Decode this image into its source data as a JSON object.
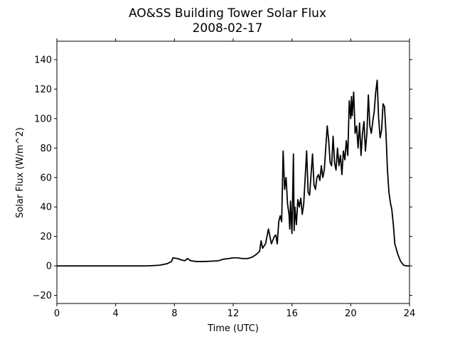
{
  "chart_data": {
    "type": "line",
    "title": "AO&SS Building Tower Solar Flux",
    "subtitle": "2008-02-17",
    "x_label": "Time (UTC)",
    "y_label": "Solar Flux (W/m^2)",
    "xlim": [
      0,
      24
    ],
    "xticks": [
      0,
      4,
      8,
      12,
      16,
      20,
      24
    ],
    "ylim": [
      -25.5,
      152.5
    ],
    "yticks": [
      {
        "value": -20,
        "label": "−20"
      },
      0,
      20,
      40,
      60,
      80,
      100,
      120,
      140
    ],
    "grid": false,
    "x": [
      0,
      2,
      4,
      6,
      6.5,
      7,
      7.5,
      7.8,
      7.9,
      8.2,
      8.5,
      8.7,
      8.9,
      9.1,
      9.5,
      10,
      10.5,
      11,
      11.3,
      11.7,
      12,
      12.3,
      12.6,
      13,
      13.3,
      13.6,
      13.8,
      13.9,
      14,
      14.2,
      14.4,
      14.5,
      14.6,
      14.8,
      14.9,
      15,
      15.1,
      15.2,
      15.3,
      15.4,
      15.5,
      15.6,
      15.7,
      15.8,
      15.85,
      15.9,
      16,
      16.1,
      16.15,
      16.2,
      16.3,
      16.4,
      16.5,
      16.6,
      16.7,
      16.8,
      16.9,
      17,
      17.1,
      17.2,
      17.3,
      17.4,
      17.5,
      17.6,
      17.7,
      17.8,
      17.9,
      18,
      18.1,
      18.2,
      18.3,
      18.4,
      18.5,
      18.6,
      18.7,
      18.8,
      18.9,
      19,
      19.1,
      19.2,
      19.3,
      19.4,
      19.5,
      19.6,
      19.7,
      19.8,
      19.9,
      20,
      20.05,
      20.1,
      20.2,
      20.3,
      20.4,
      20.5,
      20.6,
      20.7,
      20.8,
      20.9,
      21,
      21.1,
      21.2,
      21.3,
      21.4,
      21.5,
      21.6,
      21.7,
      21.8,
      21.9,
      22,
      22.1,
      22.2,
      22.3,
      22.4,
      22.5,
      22.6,
      22.7,
      22.8,
      22.9,
      23,
      23.2,
      23.4,
      23.6,
      23.8,
      24
    ],
    "series": [
      {
        "name": "Solar Flux",
        "color": "#000000",
        "values": [
          0,
          0,
          0,
          0,
          0.2,
          0.5,
          1.5,
          3,
          5.5,
          5,
          4,
          3.5,
          5,
          3.5,
          3,
          3,
          3.2,
          3.5,
          4.5,
          5,
          5.5,
          5.5,
          5,
          5,
          6,
          8,
          10,
          17,
          12,
          15,
          25,
          20,
          15,
          20,
          21,
          15,
          30,
          34,
          30,
          78,
          52,
          60,
          42,
          35,
          25,
          44,
          22,
          76,
          24,
          40,
          28,
          45,
          40,
          46,
          35,
          42,
          60,
          78,
          50,
          48,
          62,
          76,
          55,
          52,
          60,
          62,
          58,
          68,
          60,
          65,
          80,
          95,
          85,
          70,
          68,
          88,
          70,
          65,
          80,
          68,
          75,
          62,
          78,
          72,
          85,
          75,
          112,
          100,
          115,
          102,
          118,
          90,
          95,
          80,
          97,
          75,
          90,
          98,
          78,
          90,
          116,
          95,
          90,
          98,
          105,
          118,
          126,
          100,
          87,
          92,
          110,
          108,
          90,
          65,
          50,
          43,
          38,
          28,
          15,
          8,
          3,
          0.5,
          0,
          0
        ]
      }
    ]
  }
}
